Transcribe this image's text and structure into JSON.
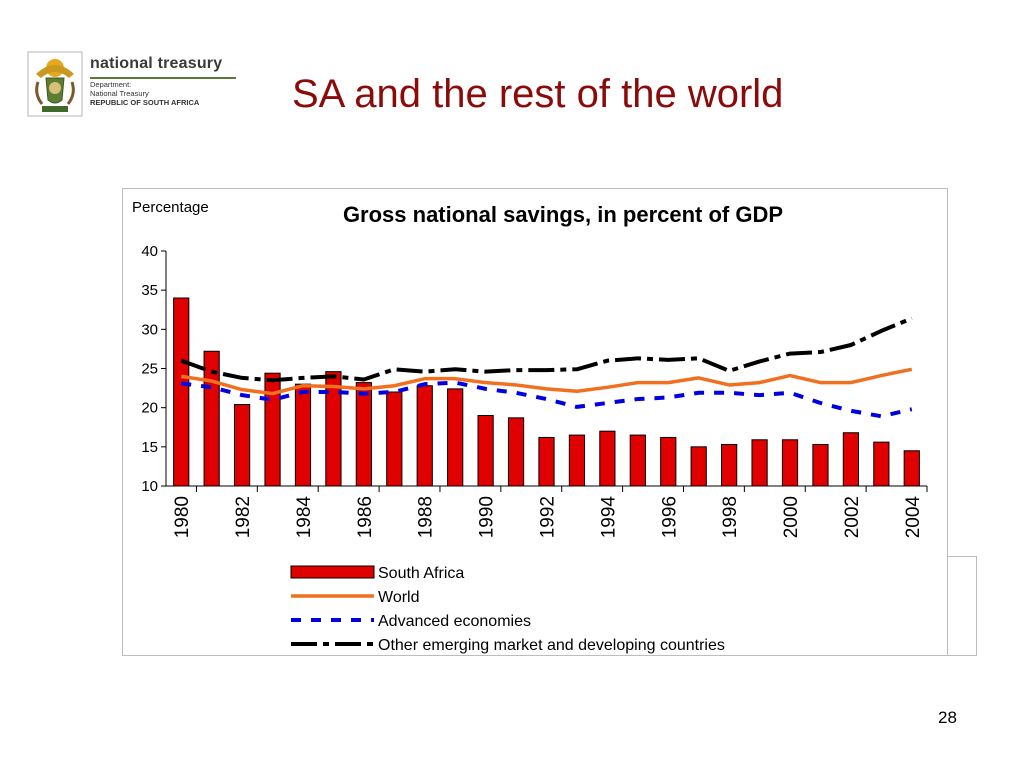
{
  "logo": {
    "title": "national treasury",
    "line1": "Department:",
    "line2": "National Treasury",
    "line3": "REPUBLIC OF SOUTH AFRICA"
  },
  "slide": {
    "title": "SA and the rest of the world",
    "page_number": "28"
  },
  "colors": {
    "title": "#8b0a0a",
    "south_africa": "#e00000",
    "world": "#f07020",
    "advanced": "#0000e0",
    "emerging": "#000000"
  },
  "chart_data": {
    "type": "bar",
    "title": "Gross national savings, in percent of GDP",
    "ylabel": "Percentage",
    "xlabel": "",
    "ylim": [
      10,
      40
    ],
    "yticks": [
      10,
      15,
      20,
      25,
      30,
      35,
      40
    ],
    "x": [
      1980,
      1981,
      1982,
      1983,
      1984,
      1985,
      1986,
      1987,
      1988,
      1989,
      1990,
      1991,
      1992,
      1993,
      1994,
      1995,
      1996,
      1997,
      1998,
      1999,
      2000,
      2001,
      2002,
      2003,
      2004
    ],
    "xtick_labels": [
      "1980",
      "1982",
      "1984",
      "1986",
      "1988",
      "1990",
      "1992",
      "1994",
      "1996",
      "1998",
      "2000",
      "2002",
      "2004"
    ],
    "legend_position": "bottom",
    "series": [
      {
        "name": "South Africa",
        "kind": "bar",
        "values": [
          34,
          27.2,
          20.4,
          24.4,
          23,
          24.6,
          23.2,
          22,
          22.8,
          22.4,
          19,
          18.7,
          16.2,
          16.5,
          17,
          16.5,
          16.2,
          15,
          15.3,
          15.9,
          15.9,
          15.3,
          16.8,
          15.6,
          14.5
        ]
      },
      {
        "name": "World",
        "kind": "line",
        "values": [
          24,
          23.4,
          22.3,
          21.8,
          22.8,
          22.7,
          22.4,
          22.8,
          23.7,
          23.7,
          23.2,
          22.9,
          22.4,
          22.1,
          22.6,
          23.2,
          23.2,
          23.8,
          22.9,
          23.2,
          24.1,
          23.2,
          23.2,
          24.1,
          24.9
        ]
      },
      {
        "name": "Advanced economies",
        "kind": "line",
        "values": [
          23.1,
          22.6,
          21.6,
          21,
          22,
          22,
          21.8,
          22,
          23,
          23.2,
          22.4,
          21.9,
          21.1,
          20.1,
          20.6,
          21.1,
          21.3,
          21.9,
          21.9,
          21.6,
          21.9,
          20.6,
          19.6,
          18.9,
          19.8
        ]
      },
      {
        "name": "Other emerging market and developing countries",
        "kind": "line",
        "values": [
          26,
          24.6,
          23.8,
          23.5,
          23.8,
          24,
          23.6,
          24.9,
          24.6,
          24.9,
          24.6,
          24.8,
          24.8,
          24.9,
          26,
          26.3,
          26.1,
          26.3,
          24.7,
          25.9,
          26.9,
          27.1,
          28,
          29.8,
          31.4
        ]
      }
    ]
  }
}
